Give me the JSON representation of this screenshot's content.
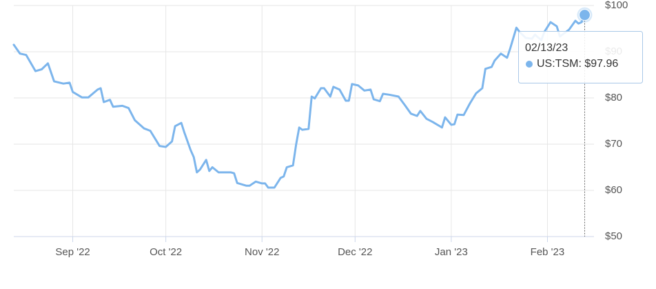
{
  "chart_data": {
    "type": "line",
    "x": [
      "08/13/22",
      "08/15/22",
      "08/17/22",
      "08/20/22",
      "08/22/22",
      "08/24/22",
      "08/26/22",
      "08/29/22",
      "08/31/22",
      "09/01/22",
      "09/04/22",
      "09/06/22",
      "09/09/22",
      "09/10/22",
      "09/11/22",
      "09/13/22",
      "09/14/22",
      "09/17/22",
      "09/19/22",
      "09/21/22",
      "09/24/22",
      "09/26/22",
      "09/29/22",
      "10/01/22",
      "10/03/22",
      "10/04/22",
      "10/06/22",
      "10/07/22",
      "10/09/22",
      "10/10/22",
      "10/11/22",
      "10/12/22",
      "10/14/22",
      "10/15/22",
      "10/16/22",
      "10/18/22",
      "10/22/22",
      "10/23/22",
      "10/24/22",
      "10/27/22",
      "10/28/22",
      "10/30/22",
      "11/01/22",
      "11/02/22",
      "11/03/22",
      "11/05/22",
      "11/07/22",
      "11/08/22",
      "11/09/22",
      "11/11/22",
      "11/12/22",
      "11/13/22",
      "11/14/22",
      "11/16/22",
      "11/17/22",
      "11/18/22",
      "11/20/22",
      "11/21/22",
      "11/23/22",
      "11/24/22",
      "11/26/22",
      "11/28/22",
      "11/29/22",
      "11/30/22",
      "12/02/22",
      "12/04/22",
      "12/06/22",
      "12/07/22",
      "12/09/22",
      "12/10/22",
      "12/12/22",
      "12/15/22",
      "12/17/22",
      "12/19/22",
      "12/21/22",
      "12/22/22",
      "12/24/22",
      "12/26/22",
      "12/29/22",
      "12/30/22",
      "01/01/23",
      "01/02/23",
      "01/03/23",
      "01/05/23",
      "01/07/23",
      "01/09/23",
      "01/11/23",
      "01/12/23",
      "01/14/23",
      "01/15/23",
      "01/17/23",
      "01/19/23",
      "01/20/23",
      "01/22/23",
      "01/23/23",
      "01/25/23",
      "01/27/23",
      "01/28/23",
      "01/30/23",
      "01/31/23",
      "02/02/23",
      "02/04/23",
      "02/05/23",
      "02/07/23",
      "02/08/23",
      "02/10/23",
      "02/11/23",
      "02/12/23",
      "02/13/23"
    ],
    "series": [
      {
        "color": "#7cb5ec",
        "values": [
          91.5,
          89.6,
          89.3,
          85.8,
          86.2,
          87.5,
          83.6,
          83.1,
          83.3,
          81.3,
          80.1,
          80.1,
          81.8,
          82.1,
          79.1,
          79.6,
          78.1,
          78.3,
          77.8,
          75.2,
          73.4,
          72.9,
          69.6,
          69.4,
          70.6,
          73.9,
          74.6,
          72.5,
          68.7,
          67.2,
          63.9,
          64.5,
          66.6,
          64.2,
          65.0,
          63.9,
          63.9,
          63.7,
          61.6,
          61.0,
          61.0,
          61.9,
          61.5,
          61.5,
          60.6,
          60.6,
          62.7,
          63.0,
          65.0,
          65.4,
          69.9,
          73.6,
          73.1,
          73.3,
          80.3,
          79.9,
          82.1,
          82.1,
          80.3,
          82.4,
          81.8,
          79.4,
          79.4,
          83.0,
          82.7,
          81.6,
          81.8,
          79.7,
          79.3,
          80.9,
          80.7,
          80.3,
          78.5,
          76.6,
          76.1,
          77.2,
          75.5,
          74.8,
          73.6,
          75.8,
          74.2,
          74.3,
          76.4,
          76.3,
          78.8,
          81.0,
          82.1,
          86.3,
          86.7,
          88.1,
          89.6,
          88.7,
          90.7,
          95.2,
          94.3,
          93.0,
          92.8,
          93.7,
          92.5,
          94.3,
          96.4,
          95.5,
          93.3,
          94.3,
          94.8,
          96.7,
          96.1,
          96.4,
          97.96
        ]
      }
    ],
    "xlim": [
      "08/13/22",
      "02/16/23"
    ],
    "xticks": [
      {
        "value": "09/01/22",
        "label": "Sep '22"
      },
      {
        "value": "10/01/22",
        "label": "Oct '22"
      },
      {
        "value": "11/01/22",
        "label": "Nov '22"
      },
      {
        "value": "12/01/22",
        "label": "Dec '22"
      },
      {
        "value": "01/01/23",
        "label": "Jan '23"
      },
      {
        "value": "02/01/23",
        "label": "Feb '23"
      }
    ],
    "ylim": [
      50,
      100
    ],
    "yticks": [
      {
        "value": 50,
        "label": "$50"
      },
      {
        "value": 60,
        "label": "$60"
      },
      {
        "value": 70,
        "label": "$70"
      },
      {
        "value": 80,
        "label": "$80"
      },
      {
        "value": 90,
        "label": "$90"
      },
      {
        "value": 100,
        "label": "$100"
      }
    ],
    "grid": true,
    "tooltip": {
      "text": "US:TSM: $97.96"
    }
  }
}
